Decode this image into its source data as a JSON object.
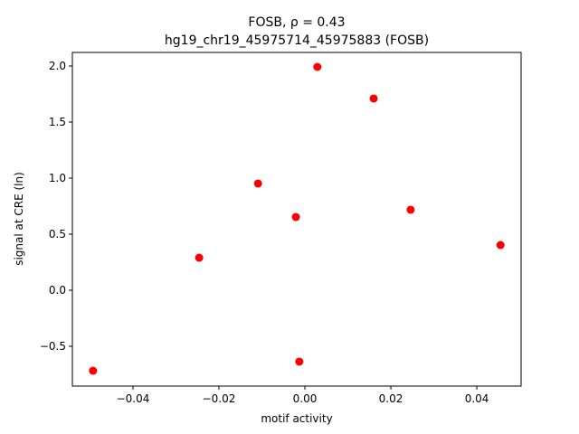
{
  "chart_data": {
    "type": "scatter",
    "title": "FOSB, ρ = 0.43",
    "subtitle": "hg19_chr19_45975714_45975883 (FOSB)",
    "x_label": "motif activity",
    "y_label": "signal at CRE (ln)",
    "color": "#ff0000",
    "x": [
      -0.0493,
      -0.0246,
      -0.0109,
      -0.0021,
      -0.0013,
      0.0029,
      0.016,
      0.0246,
      0.0455
    ],
    "values": [
      -0.718,
      0.29,
      0.952,
      0.653,
      -0.637,
      1.992,
      1.71,
      0.718,
      0.403
    ],
    "xlim": [
      -0.0541,
      0.0503
    ],
    "ylim": [
      -0.855,
      2.121
    ],
    "xticks": [
      {
        "value": -0.04,
        "label": "−0.04"
      },
      {
        "value": -0.02,
        "label": "−0.02"
      },
      {
        "value": 0,
        "label": "0.00"
      },
      0.02,
      0.04
    ],
    "yticks": [
      {
        "value": -0.5,
        "label": "−0.5"
      },
      {
        "value": 0,
        "label": "0.0"
      },
      0.5,
      {
        "value": 1,
        "label": "1.0"
      },
      1.5,
      {
        "value": 2,
        "label": "2.0"
      }
    ],
    "grid": false
  }
}
